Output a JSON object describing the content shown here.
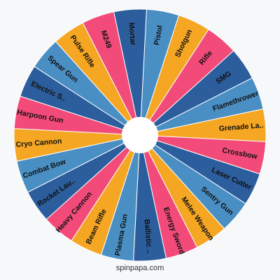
{
  "wheel": {
    "rotation_deg": 3,
    "segments": [
      {
        "label": "Pistol",
        "color": "#4a8fc4"
      },
      {
        "label": "Shotgun",
        "color": "#f5a623"
      },
      {
        "label": "Rifle",
        "color": "#f24b7a"
      },
      {
        "label": "SMG",
        "color": "#2c5d9c"
      },
      {
        "label": "Flamethrower",
        "color": "#4a8fc4"
      },
      {
        "label": "Grenade La..",
        "color": "#f5a623"
      },
      {
        "label": "Crossbow",
        "color": "#f24b7a"
      },
      {
        "label": "Laser Cutter",
        "color": "#2c5d9c"
      },
      {
        "label": "Sentry Gun",
        "color": "#4a8fc4"
      },
      {
        "label": "Melee Weapon",
        "color": "#f5a623"
      },
      {
        "label": "Energy Sword",
        "color": "#f24b7a"
      },
      {
        "label": "Ballistic ..",
        "color": "#2c5d9c"
      },
      {
        "label": "Plasma Gun",
        "color": "#4a8fc4"
      },
      {
        "label": "Beam Rifle",
        "color": "#f5a623"
      },
      {
        "label": "Heavy Cannon",
        "color": "#f24b7a"
      },
      {
        "label": "Rocket Lau..",
        "color": "#2c5d9c"
      },
      {
        "label": "Combat Bow",
        "color": "#4a8fc4"
      },
      {
        "label": "Cryo Cannon",
        "color": "#f5a623"
      },
      {
        "label": "Harpoon Gun",
        "color": "#f24b7a"
      },
      {
        "label": "Electric S..",
        "color": "#2c5d9c"
      },
      {
        "label": "Spear Gun",
        "color": "#4a8fc4"
      },
      {
        "label": "Pulse Rifle",
        "color": "#f5a623"
      },
      {
        "label": "M249",
        "color": "#f24b7a"
      },
      {
        "label": "Mortar",
        "color": "#2c5d9c"
      }
    ]
  },
  "footer": {
    "credit": "spinpapa.com"
  }
}
